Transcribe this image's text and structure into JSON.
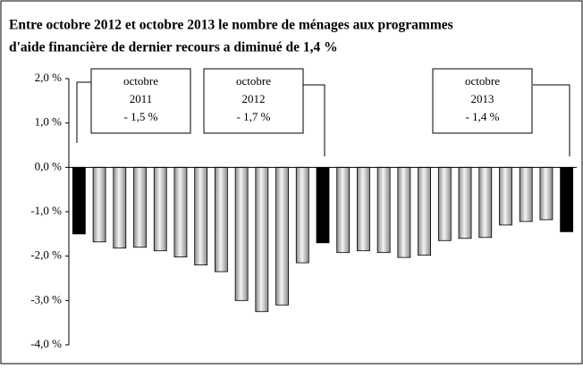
{
  "chart_data": {
    "type": "bar",
    "title": [
      "Entre octobre 2012 et octobre 2013 le nombre de ménages aux programmes",
      "d'aide financière de dernier recours a diminué de 1,4 %"
    ],
    "categories": [
      null,
      null,
      null,
      null,
      null,
      null,
      null,
      null,
      null,
      null,
      null,
      null,
      null,
      null,
      null,
      null,
      null,
      null,
      null,
      null,
      null,
      null,
      null,
      null,
      null
    ],
    "values": [
      -1.5,
      -1.68,
      -1.82,
      -1.8,
      -1.88,
      -2.02,
      -2.2,
      -2.35,
      -3.0,
      -3.25,
      -3.1,
      -2.15,
      -1.7,
      -1.92,
      -1.88,
      -1.92,
      -2.03,
      -1.98,
      -1.65,
      -1.6,
      -1.58,
      -1.3,
      -1.22,
      -1.18,
      -1.45
    ],
    "colors": [
      "#000000",
      "#c8c8c8",
      "#c8c8c8",
      "#c8c8c8",
      "#c8c8c8",
      "#c8c8c8",
      "#c8c8c8",
      "#c8c8c8",
      "#c8c8c8",
      "#c8c8c8",
      "#c8c8c8",
      "#c8c8c8",
      "#000000",
      "#c8c8c8",
      "#c8c8c8",
      "#c8c8c8",
      "#c8c8c8",
      "#c8c8c8",
      "#c8c8c8",
      "#c8c8c8",
      "#c8c8c8",
      "#c8c8c8",
      "#c8c8c8",
      "#c8c8c8",
      "#000000"
    ],
    "ylim": [
      -4.0,
      2.0
    ],
    "yticks": [
      {
        "value": -4.0,
        "label": "-4,0 %"
      },
      {
        "value": -3.0,
        "label": "-3,0 %"
      },
      {
        "value": -2.0,
        "label": "-2,0 %"
      },
      {
        "value": -1.0,
        "label": "-1,0 %"
      },
      {
        "value": 0.0,
        "label": "0,0 %"
      },
      {
        "value": 1.0,
        "label": "1,0 %"
      },
      {
        "value": 2.0,
        "label": "2,0 %"
      }
    ],
    "annotations": [
      {
        "lines": [
          "octobre",
          "2011",
          "- 1,5 %"
        ]
      },
      {
        "lines": [
          "octobre",
          "2012",
          "- 1,7 %"
        ]
      },
      {
        "lines": [
          "octobre",
          "2013",
          "- 1,4 %"
        ]
      }
    ]
  }
}
